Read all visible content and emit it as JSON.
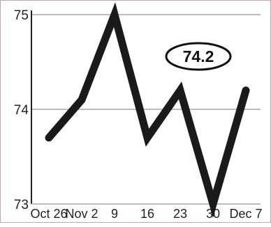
{
  "chart_data": {
    "type": "line",
    "title": "",
    "xlabel": "",
    "ylabel": "",
    "categories": [
      "Oct 26",
      "Nov 2",
      "9",
      "16",
      "23",
      "30",
      "Dec 7"
    ],
    "series": [
      {
        "values": [
          73.7,
          74.1,
          75.0,
          73.7,
          74.2,
          73.0,
          74.2
        ]
      }
    ],
    "ylim": [
      73,
      75
    ],
    "yticks": [
      73,
      74,
      75
    ],
    "ytick_labels": [
      "73",
      "74",
      "75"
    ],
    "grid": true,
    "callout": "74.2",
    "colors": {
      "line": "#1a1a1a",
      "grid": "#bdbdbd",
      "axis": "#222222",
      "frame": "#c9a3ad"
    }
  }
}
